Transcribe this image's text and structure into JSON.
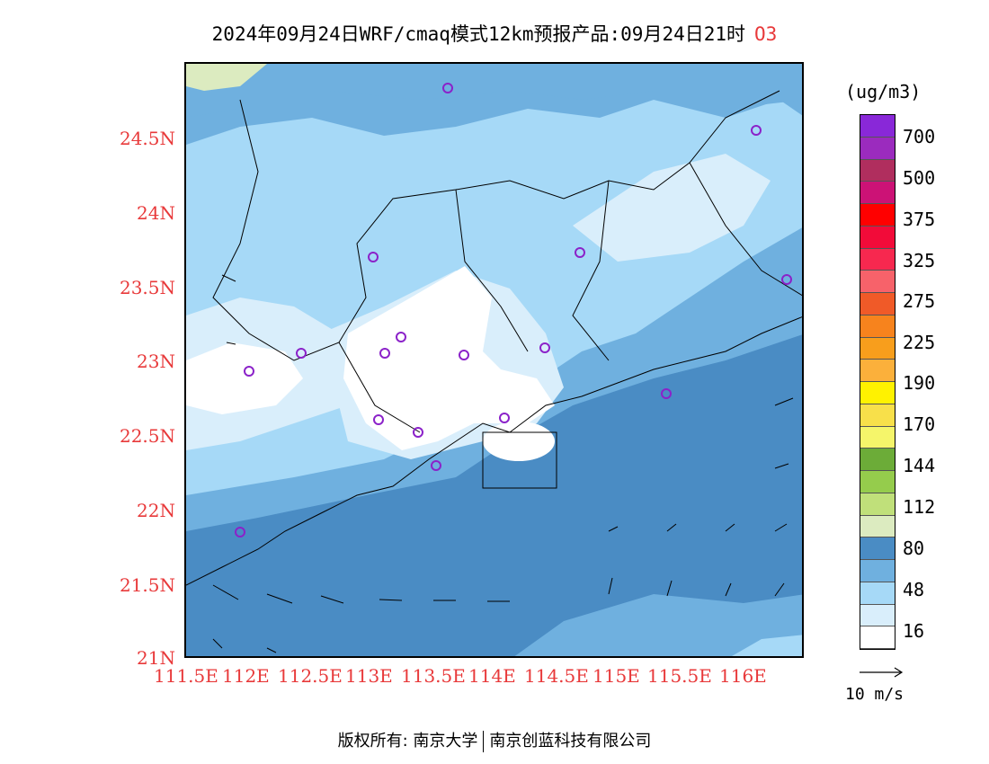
{
  "title": {
    "text": "2024年09月24日WRF/cmaq模式12km预报产品:09月24日21时",
    "pollutant": "O3"
  },
  "axes": {
    "y_labels": [
      "24.5N",
      "24N",
      "23.5N",
      "23N",
      "22.5N",
      "22N",
      "21.5N",
      "21N"
    ],
    "y_values": [
      24.5,
      24,
      23.5,
      23,
      22.5,
      22,
      21.5,
      21
    ],
    "x_labels": [
      "111.5E",
      "112E",
      "112.5E",
      "113E",
      "113.5E",
      "114E",
      "114.5E",
      "115E",
      "115.5E",
      "116E"
    ],
    "x_values": [
      111.5,
      112,
      112.5,
      113,
      113.5,
      114,
      114.5,
      115,
      115.5,
      116
    ],
    "lon_range": [
      111.5,
      116.5
    ],
    "lat_range": [
      21,
      25
    ]
  },
  "legend": {
    "unit": "(ug/m3)",
    "colors": [
      "#ffffff",
      "#d9eefb",
      "#a6d9f7",
      "#6fb0df",
      "#4a8cc4",
      "#dcebc0",
      "#c0e07a",
      "#95cc4c",
      "#6cac38",
      "#f5f56a",
      "#f8e04a",
      "#fff200",
      "#fbb03b",
      "#f89e1c",
      "#f7831d",
      "#f05a28",
      "#f7626a",
      "#f7284f",
      "#f20b39",
      "#ff0000",
      "#cc1276",
      "#b02e5e",
      "#9b2bbe",
      "#8928d8"
    ],
    "labels": [
      "16",
      "48",
      "80",
      "112",
      "144",
      "170",
      "190",
      "225",
      "275",
      "325",
      "375",
      "500",
      "700"
    ]
  },
  "wind_reference": "10 m/s",
  "footer": {
    "left": "版权所有: 南京大学",
    "right": "南京创蓝科技有限公司"
  }
}
